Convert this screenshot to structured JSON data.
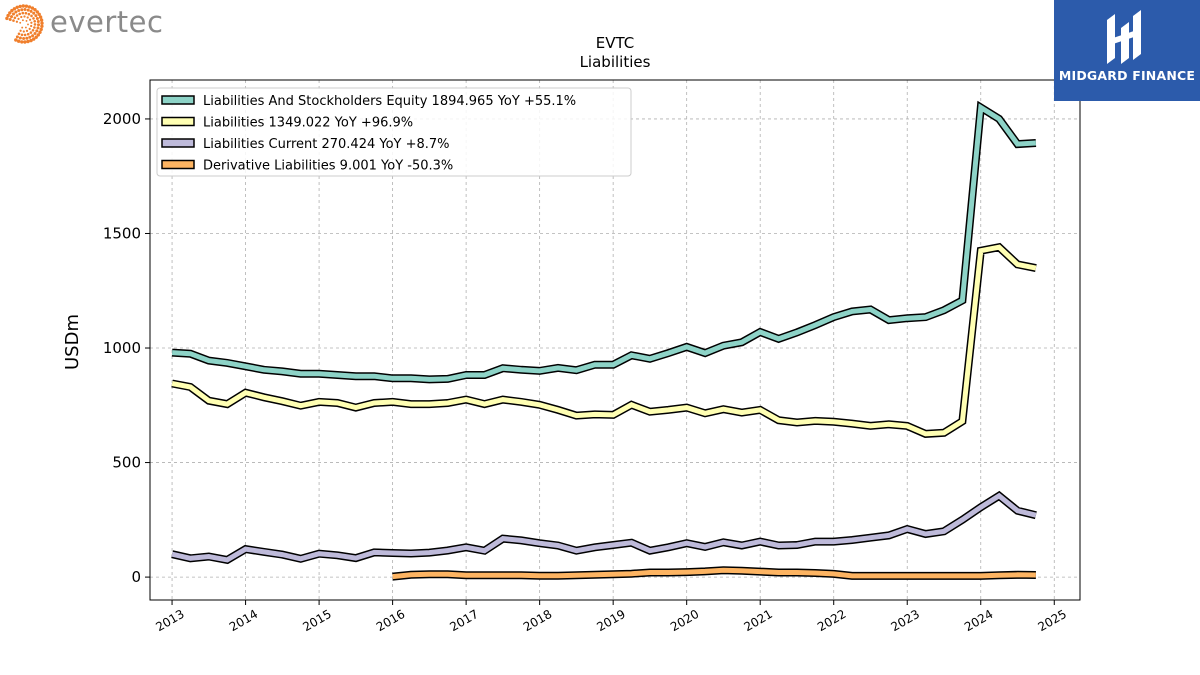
{
  "logo": {
    "text": "evertec",
    "icon": "evertec-dots-icon",
    "color": "#f07f2c"
  },
  "brand": {
    "text": "MIDGARD FINANCE",
    "icon": "midgard-logo-icon",
    "background": "#2c5bab"
  },
  "chart_data": {
    "type": "line",
    "title": "EVTC",
    "subtitle": "Liabilities",
    "ylabel": "USDm",
    "xlabel": "",
    "xlim": [
      2012.7,
      2025.35
    ],
    "ylim": [
      -100,
      2170
    ],
    "yticks": [
      0,
      500,
      1000,
      1500,
      2000
    ],
    "xticks": [
      2013,
      2014,
      2015,
      2016,
      2017,
      2018,
      2019,
      2020,
      2021,
      2022,
      2023,
      2024,
      2025
    ],
    "grid": true,
    "legend_position": "top-left",
    "series": [
      {
        "name": "Liabilities And Stockholders Equity",
        "legend": "Liabilities And Stockholders Equity  1894.965 YoY +55.1%",
        "color": "#8dd3c7",
        "x": [
          2013.0,
          2013.25,
          2013.5,
          2013.75,
          2014.0,
          2014.25,
          2014.5,
          2014.75,
          2015.0,
          2015.25,
          2015.5,
          2015.75,
          2016.0,
          2016.25,
          2016.5,
          2016.75,
          2017.0,
          2017.25,
          2017.5,
          2017.75,
          2018.0,
          2018.25,
          2018.5,
          2018.75,
          2019.0,
          2019.25,
          2019.5,
          2019.75,
          2020.0,
          2020.25,
          2020.5,
          2020.75,
          2021.0,
          2021.25,
          2021.5,
          2021.75,
          2022.0,
          2022.25,
          2022.5,
          2022.75,
          2023.0,
          2023.25,
          2023.5,
          2023.75,
          2024.0,
          2024.25,
          2024.5,
          2024.75
        ],
        "values": [
          980,
          975,
          945,
          935,
          920,
          905,
          898,
          888,
          888,
          882,
          877,
          877,
          868,
          868,
          863,
          865,
          882,
          882,
          912,
          905,
          900,
          913,
          903,
          927,
          927,
          968,
          953,
          978,
          1005,
          978,
          1010,
          1025,
          1070,
          1040,
          1068,
          1100,
          1135,
          1160,
          1168,
          1122,
          1130,
          1135,
          1165,
          1208,
          2050,
          2000,
          1890,
          1895
        ]
      },
      {
        "name": "Liabilities",
        "legend": "Liabilities  1349.022 YoY +96.9%",
        "color": "#ffffb3",
        "x": [
          2013.0,
          2013.25,
          2013.5,
          2013.75,
          2014.0,
          2014.25,
          2014.5,
          2014.75,
          2015.0,
          2015.25,
          2015.5,
          2015.75,
          2016.0,
          2016.25,
          2016.5,
          2016.75,
          2017.0,
          2017.25,
          2017.5,
          2017.75,
          2018.0,
          2018.25,
          2018.5,
          2018.75,
          2019.0,
          2019.25,
          2019.5,
          2019.75,
          2020.0,
          2020.25,
          2020.5,
          2020.75,
          2021.0,
          2021.25,
          2021.5,
          2021.75,
          2022.0,
          2022.25,
          2022.5,
          2022.75,
          2023.0,
          2023.25,
          2023.5,
          2023.75,
          2024.0,
          2024.25,
          2024.5,
          2024.75
        ],
        "values": [
          845,
          830,
          770,
          755,
          805,
          785,
          768,
          748,
          765,
          760,
          740,
          760,
          765,
          755,
          755,
          760,
          775,
          755,
          775,
          765,
          752,
          730,
          705,
          710,
          708,
          752,
          722,
          730,
          740,
          715,
          733,
          718,
          730,
          685,
          675,
          682,
          678,
          670,
          660,
          667,
          660,
          625,
          630,
          680,
          1425,
          1440,
          1365,
          1349
        ]
      },
      {
        "name": "Liabilities Current",
        "legend": "Liabilities Current  270.424 YoY +8.7%",
        "color": "#bebada",
        "x": [
          2013.0,
          2013.25,
          2013.5,
          2013.75,
          2014.0,
          2014.25,
          2014.5,
          2014.75,
          2015.0,
          2015.25,
          2015.5,
          2015.75,
          2016.0,
          2016.25,
          2016.5,
          2016.75,
          2017.0,
          2017.25,
          2017.5,
          2017.75,
          2018.0,
          2018.25,
          2018.5,
          2018.75,
          2019.0,
          2019.25,
          2019.5,
          2019.75,
          2020.0,
          2020.25,
          2020.5,
          2020.75,
          2021.0,
          2021.25,
          2021.5,
          2021.75,
          2022.0,
          2022.25,
          2022.5,
          2022.75,
          2023.0,
          2023.25,
          2023.5,
          2023.75,
          2024.0,
          2024.25,
          2024.5,
          2024.75
        ],
        "values": [
          100,
          82,
          90,
          75,
          122,
          110,
          98,
          80,
          102,
          95,
          83,
          108,
          105,
          103,
          107,
          116,
          130,
          115,
          168,
          160,
          148,
          138,
          115,
          130,
          140,
          150,
          115,
          130,
          148,
          132,
          152,
          138,
          155,
          138,
          140,
          155,
          155,
          162,
          172,
          182,
          210,
          188,
          200,
          250,
          305,
          355,
          290,
          270
        ]
      },
      {
        "name": "Derivative Liabilities",
        "legend": "Derivative Liabilities  9.001 YoY -50.3%",
        "color": "#fdb462",
        "x": [
          2016.0,
          2016.25,
          2016.5,
          2016.75,
          2017.0,
          2017.25,
          2017.5,
          2017.75,
          2018.0,
          2018.25,
          2018.5,
          2018.75,
          2019.0,
          2019.25,
          2019.5,
          2019.75,
          2020.0,
          2020.25,
          2020.5,
          2020.75,
          2021.0,
          2021.25,
          2021.5,
          2021.75,
          2022.0,
          2022.25,
          2022.5,
          2022.75,
          2023.0,
          2023.25,
          2023.5,
          2023.75,
          2024.0,
          2024.25,
          2024.5,
          2024.75
        ],
        "values": [
          2,
          10,
          12,
          12,
          8,
          8,
          8,
          8,
          6,
          6,
          8,
          10,
          12,
          15,
          20,
          20,
          22,
          25,
          30,
          28,
          24,
          20,
          20,
          18,
          14,
          5,
          5,
          5,
          5,
          5,
          5,
          5,
          5,
          8,
          10,
          9
        ]
      }
    ]
  }
}
